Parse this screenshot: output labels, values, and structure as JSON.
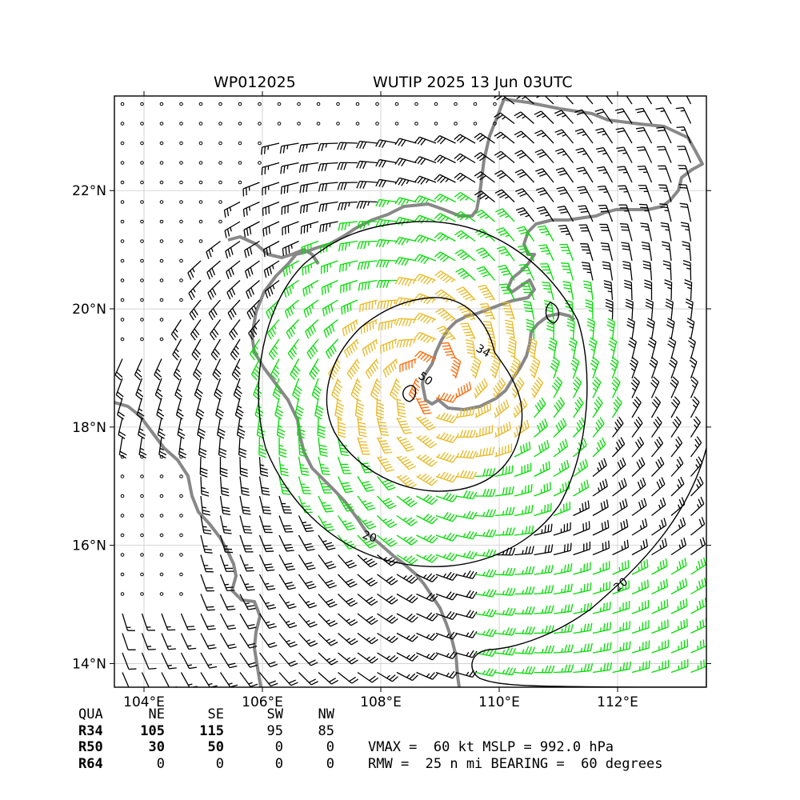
{
  "header": {
    "storm_id": "WP012025",
    "storm_info": "WUTIP 2025 13 Jun 03UTC"
  },
  "map": {
    "lon_range": [
      103.5,
      113.5
    ],
    "lat_range": [
      13.6,
      23.6
    ],
    "lon_ticks": [
      "104°E",
      "106°E",
      "108°E",
      "110°E",
      "112°E"
    ],
    "lat_ticks": [
      "14°N",
      "16°N",
      "18°N",
      "20°N",
      "22°N"
    ],
    "center": {
      "lon": 108.9,
      "lat": 18.8
    },
    "contour_labels": [
      "34",
      "50",
      "20",
      "20"
    ],
    "colors": {
      "calm_and_light": "#000000",
      "r34_barbs": "#00dd00",
      "r50_barbs": "#e8b820",
      "r64_barbs": "#ff6600",
      "coastline": "#888888",
      "contour": "#000000"
    }
  },
  "wind_radii": {
    "headers": [
      "QUA",
      "NE",
      "SE",
      "SW",
      "NW"
    ],
    "rows": [
      {
        "label": "R34",
        "values": [
          "105",
          "115",
          "95",
          "85"
        ]
      },
      {
        "label": "R50",
        "values": [
          "30",
          "50",
          "0",
          "0"
        ]
      },
      {
        "label": "R64",
        "values": [
          "0",
          "0",
          "0",
          "0"
        ]
      }
    ]
  },
  "stats": {
    "line1": "VMAX =  60 kt MSLP = 992.0 hPa",
    "line2": "RMW =  25 n mi BEARING =  60 degrees"
  }
}
